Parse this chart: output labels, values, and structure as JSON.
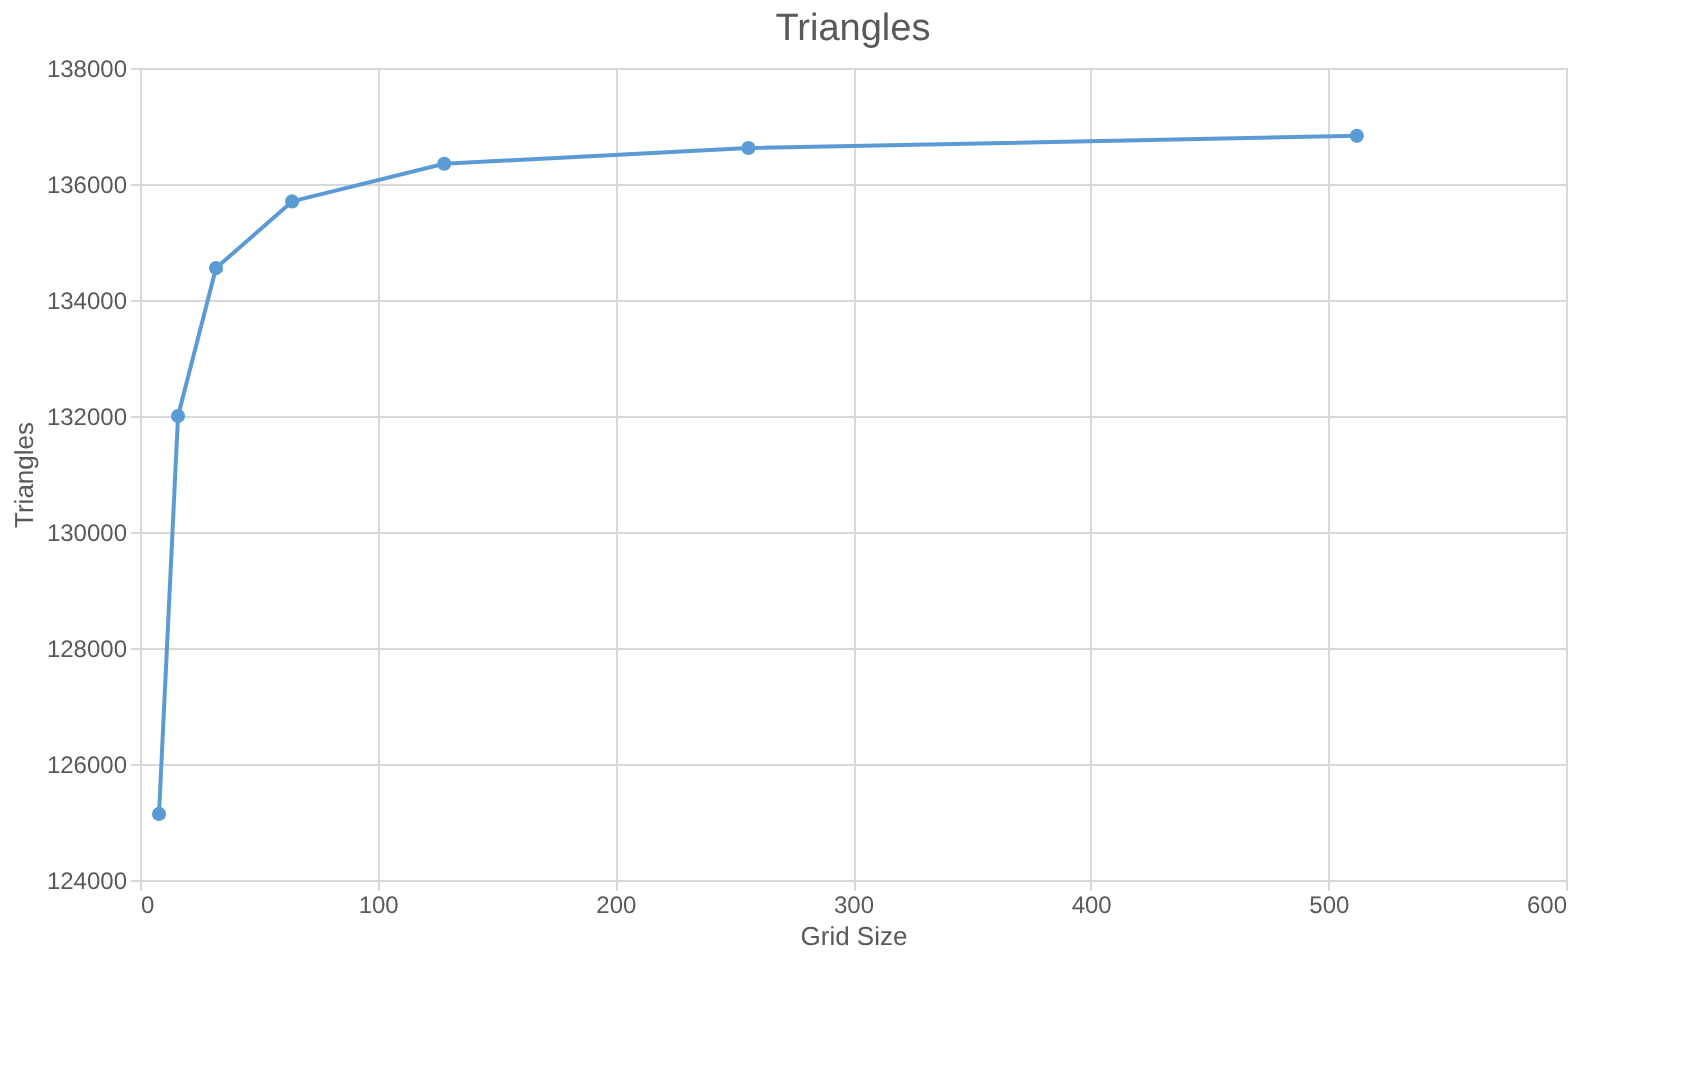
{
  "chart_data": {
    "type": "line",
    "title": "Triangles",
    "xlabel": "Grid Size",
    "ylabel": "Triangles",
    "x": [
      8,
      16,
      32,
      64,
      128,
      256,
      512
    ],
    "series": [
      {
        "color": "#5b9bd5",
        "values": [
          125140,
          132000,
          134550,
          135700,
          136350,
          136620,
          136830
        ]
      }
    ],
    "xlim": [
      0,
      600
    ],
    "xticks": [
      0,
      100,
      200,
      300,
      400,
      500,
      600
    ],
    "ylim": [
      124000,
      138000
    ],
    "yticks": [
      124000,
      126000,
      128000,
      130000,
      132000,
      134000,
      136000,
      138000
    ],
    "grid": true,
    "marker": "circle",
    "line_style": "solid"
  }
}
